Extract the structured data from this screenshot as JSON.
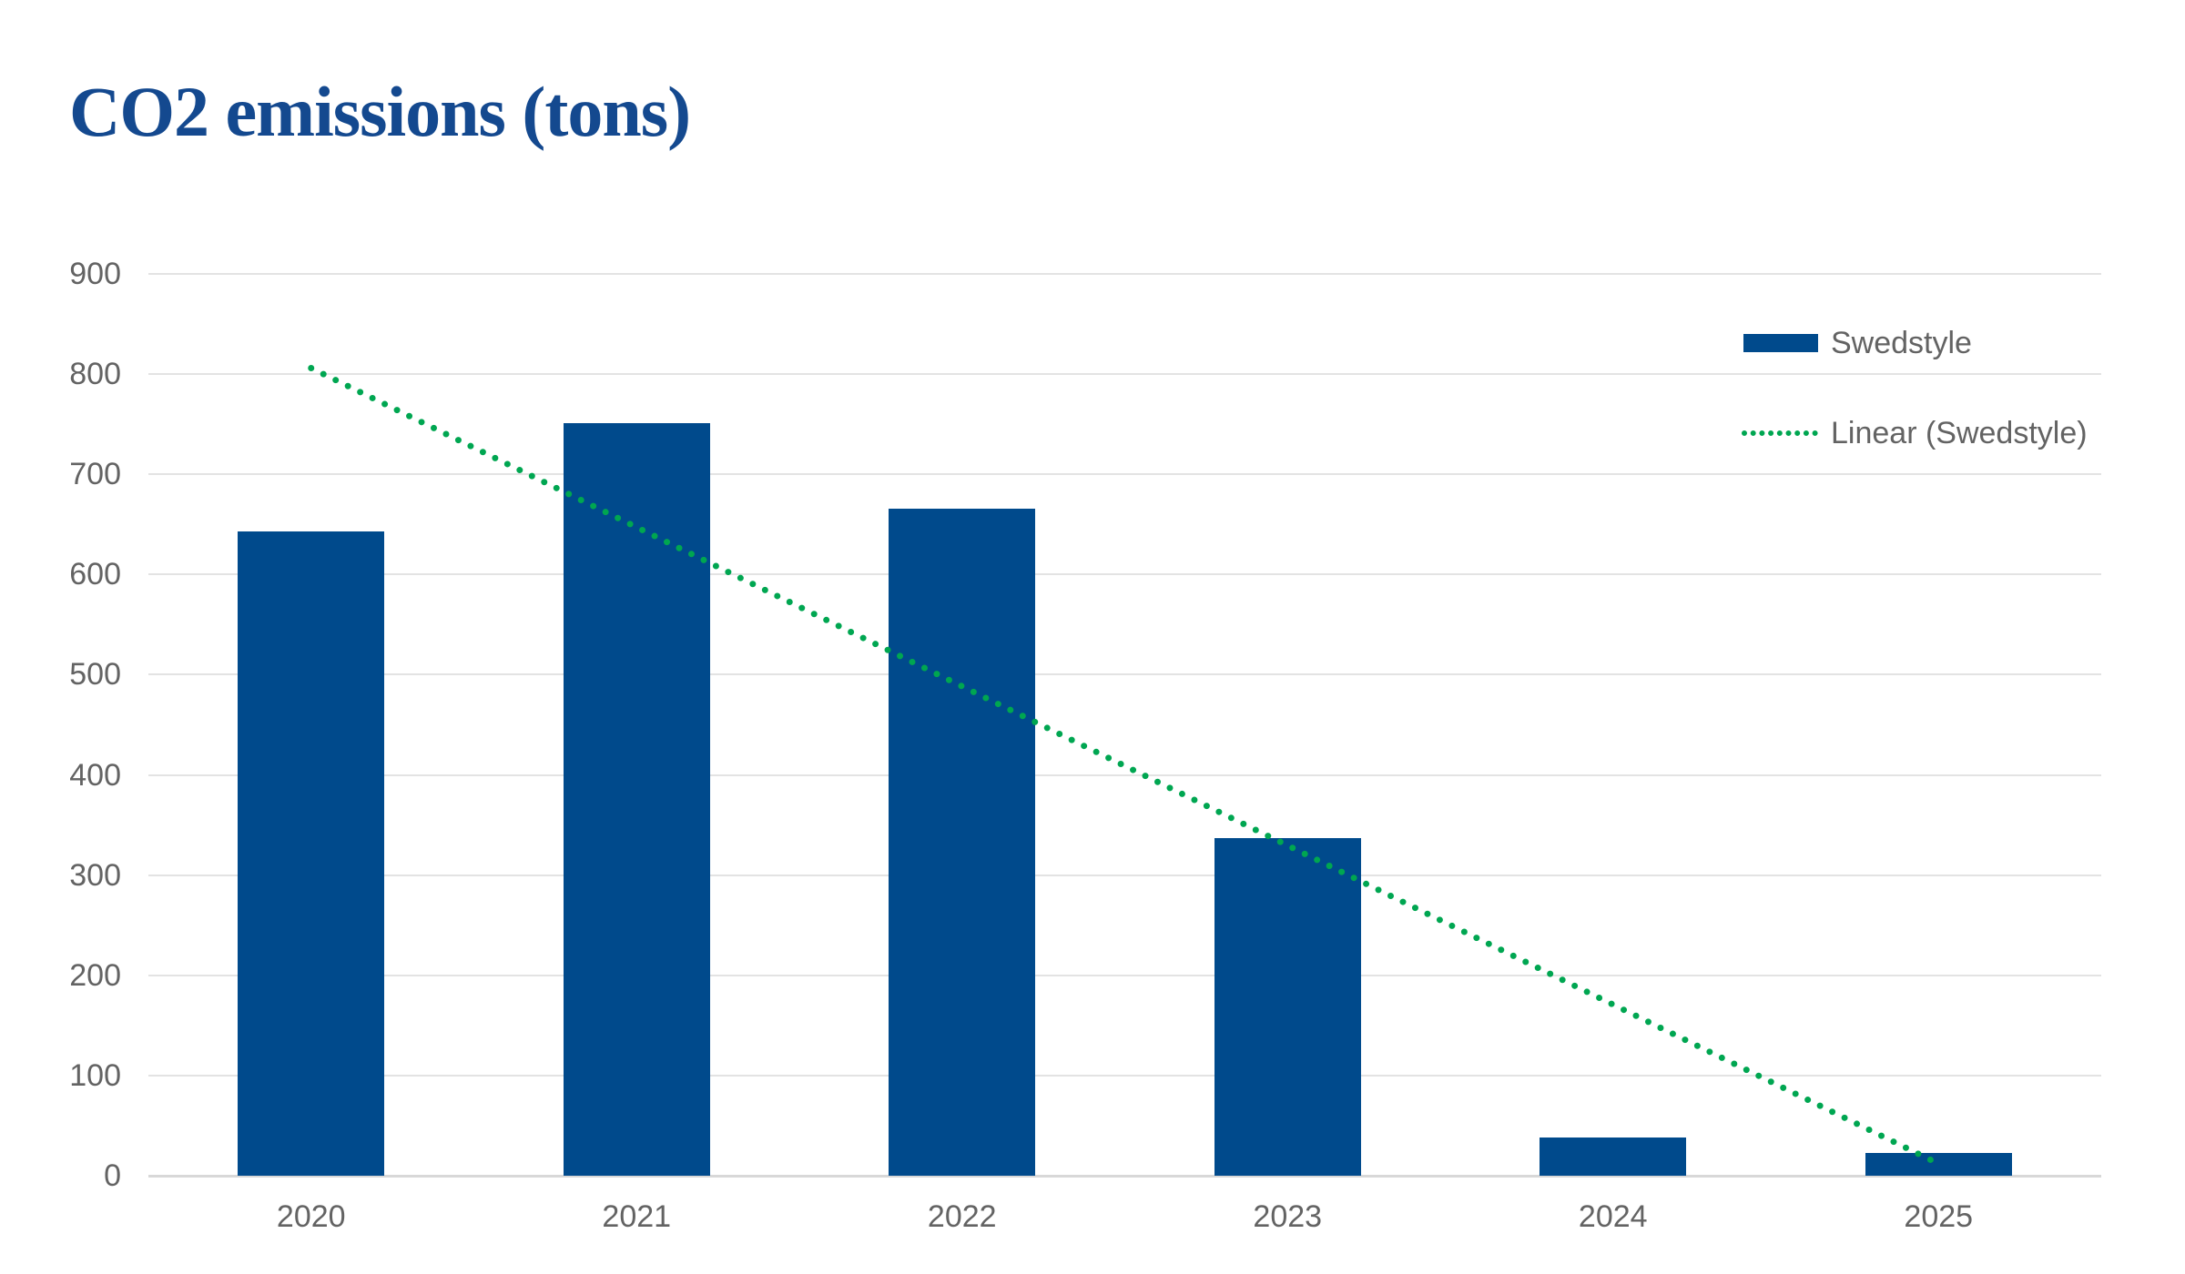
{
  "title": {
    "text": "CO2 emissions (tons)",
    "color": "#14498f"
  },
  "chart_data": {
    "type": "bar",
    "title": "CO2 emissions (tons)",
    "categories": [
      "2020",
      "2021",
      "2022",
      "2023",
      "2024",
      "2025"
    ],
    "series": [
      {
        "name": "Swedstyle",
        "color": "#004a8c",
        "values": [
          643,
          751,
          666,
          337,
          38,
          23
        ]
      }
    ],
    "trendline": {
      "name": "Linear (Swedstyle)",
      "color": "#00a651",
      "style": "dotted",
      "start_value": 806,
      "end_value": 12
    },
    "xlabel": "",
    "ylabel": "",
    "ylim": [
      0,
      900
    ],
    "yticks": [
      0,
      100,
      200,
      300,
      400,
      500,
      600,
      700,
      800,
      900
    ],
    "grid": true,
    "gridline_color": "#e3e3e3",
    "axis_label_color": "#636363",
    "legend_position": "right-top"
  },
  "legend": {
    "items": [
      {
        "label": "Swedstyle",
        "marker": "bar-swatch",
        "color": "#004a8c"
      },
      {
        "label": "Linear (Swedstyle)",
        "marker": "dotted-line",
        "color": "#00a651"
      }
    ]
  }
}
